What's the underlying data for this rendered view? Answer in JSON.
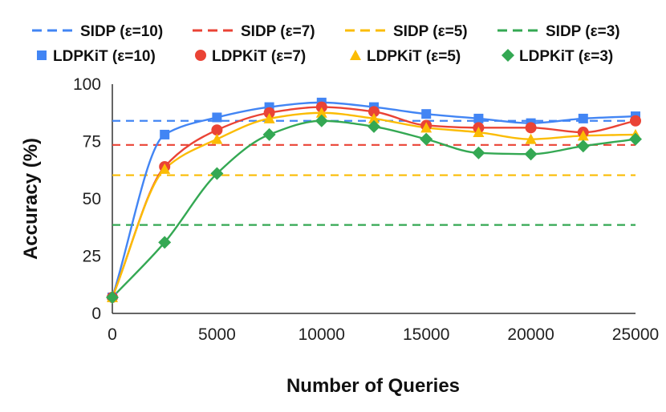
{
  "chart_data": {
    "type": "line",
    "title": "",
    "xlabel": "Number of Queries",
    "ylabel": "Accuracy (%)",
    "xlim": [
      0,
      25000
    ],
    "ylim": [
      0,
      100
    ],
    "xticks": [
      0,
      5000,
      10000,
      15000,
      20000,
      25000
    ],
    "yticks": [
      0,
      25,
      50,
      75,
      100
    ],
    "xtick_labels": [
      "0",
      "5000",
      "10000",
      "15000",
      "20000",
      "25000"
    ],
    "ytick_labels": [
      "0",
      "25",
      "50",
      "75",
      "100"
    ],
    "grid": false,
    "legend_position": "top",
    "reference_lines": [
      {
        "name": "SIDP (ε=10)",
        "value": 84,
        "color": "#4285f4"
      },
      {
        "name": "SIDP (ε=7)",
        "value": 73.5,
        "color": "#ea4335"
      },
      {
        "name": "SIDP (ε=5)",
        "value": 60.3,
        "color": "#fbbc04"
      },
      {
        "name": "SIDP (ε=3)",
        "value": 38.6,
        "color": "#34a853"
      }
    ],
    "x": [
      0,
      2500,
      5000,
      7500,
      10000,
      12500,
      15000,
      17500,
      20000,
      22500,
      25000
    ],
    "series": [
      {
        "name": "LDPKiT (ε=10)",
        "marker": "square",
        "color": "#4285f4",
        "values": [
          7,
          78,
          85.5,
          90,
          92,
          90,
          87,
          85,
          83,
          85,
          86
        ]
      },
      {
        "name": "LDPKiT (ε=7)",
        "marker": "circle",
        "color": "#ea4335",
        "values": [
          7,
          64,
          80,
          87.5,
          90,
          88,
          82,
          81,
          81,
          79,
          84
        ]
      },
      {
        "name": "LDPKiT (ε=5)",
        "marker": "triangle",
        "color": "#fbbc04",
        "values": [
          7,
          63,
          76,
          85,
          87.5,
          85,
          81,
          79,
          76,
          77.5,
          78
        ]
      },
      {
        "name": "LDPKiT (ε=3)",
        "marker": "diamond",
        "color": "#34a853",
        "values": [
          7,
          31,
          61,
          78,
          84,
          81.5,
          76,
          70,
          69.5,
          73,
          76
        ]
      }
    ]
  }
}
